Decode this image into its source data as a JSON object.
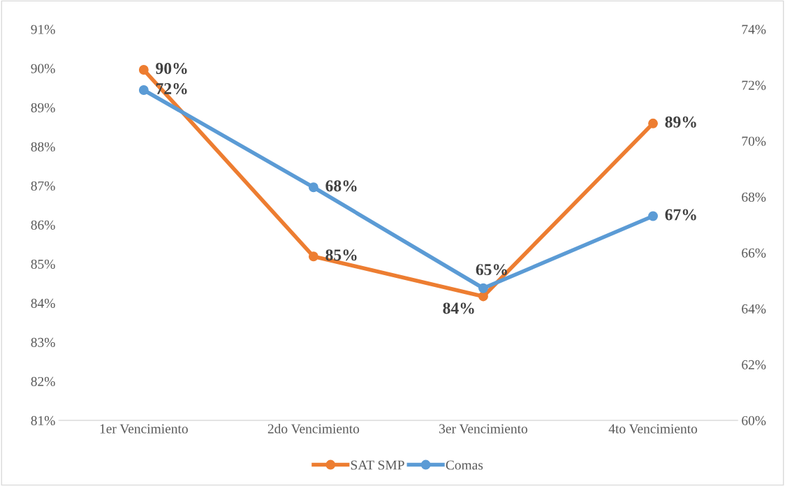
{
  "chart_data": {
    "type": "line",
    "categories": [
      "1er Vencimiento",
      "2do Vencimiento",
      "3er Vencimiento",
      "4to Vencimiento"
    ],
    "series": [
      {
        "name": "SAT SMP",
        "color": "#ed7d31",
        "values": [
          89.96,
          85.19,
          84.17,
          88.59
        ],
        "value_labels": [
          "90%",
          "85%",
          "84%",
          "89%"
        ]
      },
      {
        "name": "Comas",
        "color": "#5b9bd5",
        "axis": "y2",
        "values": [
          71.82,
          68.34,
          64.73,
          67.31
        ],
        "value_labels": [
          "72%",
          "68%",
          "65%",
          "67%"
        ]
      }
    ],
    "ylim": [
      81,
      91
    ],
    "yticks": [
      {
        "value": 81,
        "label": "81%"
      },
      {
        "value": 82,
        "label": "82%"
      },
      {
        "value": 83,
        "label": "83%"
      },
      {
        "value": 84,
        "label": "84%"
      },
      {
        "value": 85,
        "label": "85%"
      },
      {
        "value": 86,
        "label": "86%"
      },
      {
        "value": 87,
        "label": "87%"
      },
      {
        "value": 88,
        "label": "88%"
      },
      {
        "value": 89,
        "label": "89%"
      },
      {
        "value": 90,
        "label": "90%"
      },
      {
        "value": 91,
        "label": "91%"
      }
    ],
    "y2lim": [
      60,
      74
    ],
    "y2ticks": [
      {
        "value": 60,
        "label": "60%"
      },
      {
        "value": 62,
        "label": "62%"
      },
      {
        "value": 64,
        "label": "64%"
      },
      {
        "value": 66,
        "label": "66%"
      },
      {
        "value": 68,
        "label": "68%"
      },
      {
        "value": 70,
        "label": "70%"
      },
      {
        "value": 72,
        "label": "72%"
      },
      {
        "value": 74,
        "label": "74%"
      }
    ],
    "grid": false,
    "legend": "bottom",
    "marker": "circle",
    "line_style": "solid"
  }
}
